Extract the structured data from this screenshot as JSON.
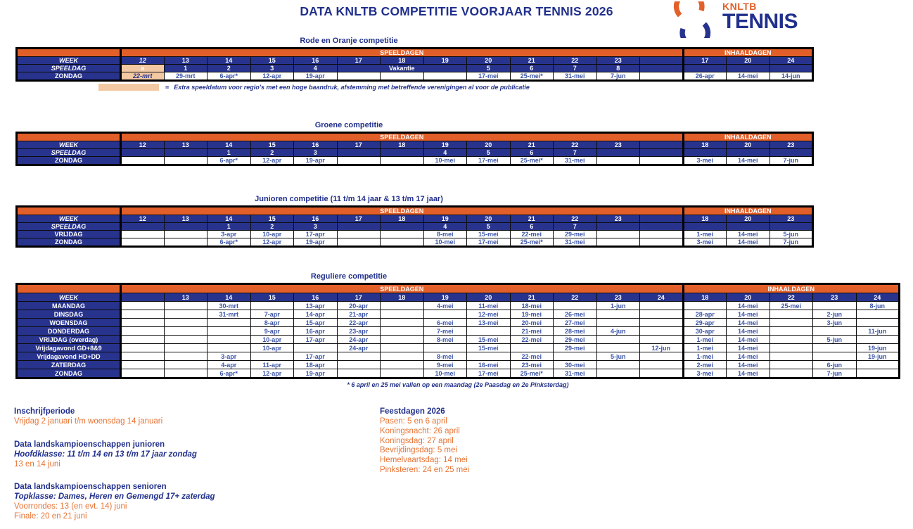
{
  "page": {
    "title": "DATA KNLTB COMPETITIE VOORJAAR TENNIS 2026"
  },
  "logo": {
    "top": "KNLTB",
    "bottom": "TENNIS"
  },
  "colors": {
    "navy": "#27338D",
    "orange_band": "#E25F2A",
    "orange_text": "#E87435",
    "date_blue": "#3C55A8",
    "highlight_peach": "#F2C9A3",
    "title_navy": "#21308C"
  },
  "tables": [
    {
      "slug": "rode-en-oranje",
      "caption": "Rode en Oranje competitie",
      "speeldagen_label": "SPEELDAGEN",
      "inhaaldagen_label": "INHAALDAGEN",
      "rows": [
        {
          "label": "WEEK",
          "kind": "head",
          "play": [
            {
              "t": "12",
              "italic": true
            },
            "13",
            "14",
            "15",
            "16",
            "17",
            "18",
            "19",
            "20",
            "21",
            "22",
            "23",
            ""
          ],
          "inhaal": [
            "17",
            "20",
            "24"
          ]
        },
        {
          "label": "SPEELDAG",
          "kind": "head",
          "play": [
            {
              "t": "a",
              "hl": true
            },
            "1",
            "2",
            "3",
            "4",
            {
              "t": "Vakantie",
              "span": 3
            },
            "5",
            "6",
            "7",
            "8",
            ""
          ],
          "inhaal": [
            "",
            "",
            ""
          ]
        },
        {
          "label": "ZONDAG",
          "kind": "day",
          "play": [
            {
              "t": "22-mrt",
              "hl": true,
              "italic": true
            },
            "29-mrt",
            "6-apr*",
            "12-apr",
            "19-apr",
            "",
            "",
            "",
            "17-mei",
            "25-mei*",
            "31-mei",
            "7-jun",
            ""
          ],
          "inhaal": [
            "26-apr",
            "14-mei",
            "14-jun"
          ]
        }
      ],
      "legend": {
        "symbol": "=",
        "text": "Extra speeldatum voor regio's met een hoge baandruk, afstemming met betreffende verenigingen al voor de publicatie"
      }
    },
    {
      "slug": "groene",
      "caption": "Groene competitie",
      "speeldagen_label": "SPEELDAGEN",
      "inhaaldagen_label": "INHAALDAGEN",
      "rows": [
        {
          "label": "WEEK",
          "kind": "head",
          "play": [
            "12",
            "13",
            "14",
            "15",
            "16",
            "17",
            "18",
            "19",
            "20",
            "21",
            "22",
            "23",
            ""
          ],
          "inhaal": [
            "18",
            "20",
            "23"
          ]
        },
        {
          "label": "SPEELDAG",
          "kind": "head",
          "play": [
            "",
            "",
            "1",
            "2",
            "3",
            "",
            "",
            "4",
            "5",
            "6",
            "7",
            "",
            ""
          ],
          "inhaal": [
            "",
            "",
            ""
          ]
        },
        {
          "label": "ZONDAG",
          "kind": "day",
          "play": [
            "",
            "",
            "6-apr*",
            "12-apr",
            "19-apr",
            "",
            "",
            "10-mei",
            "17-mei",
            "25-mei*",
            "31-mei",
            "",
            ""
          ],
          "inhaal": [
            "3-mei",
            "14-mei",
            "7-jun"
          ]
        }
      ]
    },
    {
      "slug": "junioren",
      "caption": "Junioren competitie (11 t/m 14 jaar & 13 t/m 17 jaar)",
      "speeldagen_label": "SPEELDAGEN",
      "inhaaldagen_label": "INHAALDAGEN",
      "rows": [
        {
          "label": "WEEK",
          "kind": "head",
          "play": [
            "12",
            "13",
            "14",
            "15",
            "16",
            "17",
            "18",
            "19",
            "20",
            "21",
            "22",
            "23",
            ""
          ],
          "inhaal": [
            "18",
            "20",
            "23"
          ]
        },
        {
          "label": "SPEELDAG",
          "kind": "head",
          "play": [
            "",
            "",
            "1",
            "2",
            "3",
            "",
            "",
            "4",
            "5",
            "6",
            "7",
            "",
            ""
          ],
          "inhaal": [
            "",
            "",
            ""
          ]
        },
        {
          "label": "VRIJDAG",
          "kind": "day",
          "play": [
            "",
            "",
            "3-apr",
            "10-apr",
            "17-apr",
            "",
            "",
            "8-mei",
            "15-mei",
            "22-mei",
            "29-mei",
            "",
            ""
          ],
          "inhaal": [
            "1-mei",
            "14-mei",
            "5-jun"
          ]
        },
        {
          "label": "ZONDAG",
          "kind": "day",
          "play": [
            "",
            "",
            "6-apr*",
            "12-apr",
            "19-apr",
            "",
            "",
            "10-mei",
            "17-mei",
            "25-mei*",
            "31-mei",
            "",
            ""
          ],
          "inhaal": [
            "3-mei",
            "14-mei",
            "7-jun"
          ]
        }
      ]
    },
    {
      "slug": "reguliere",
      "caption": "Reguliere competitie",
      "speeldagen_label": "SPEELDAGEN",
      "inhaaldagen_label": "INHAALDAGEN",
      "rows": [
        {
          "label": "WEEK",
          "kind": "head",
          "play": [
            "",
            "13",
            "14",
            "15",
            "16",
            "17",
            "18",
            "19",
            "20",
            "21",
            "22",
            "23",
            "24"
          ],
          "inhaal": [
            "18",
            "20",
            "22",
            "23",
            "24"
          ]
        },
        {
          "label": "MAANDAG",
          "kind": "day",
          "play": [
            "",
            "",
            "30-mrt",
            "",
            "13-apr",
            "20-apr",
            "",
            "4-mei",
            "11-mei",
            "18-mei",
            "",
            "1-jun",
            ""
          ],
          "inhaal": [
            "",
            "14-mei",
            "25-mei",
            "",
            "8-jun"
          ]
        },
        {
          "label": "DINSDAG",
          "kind": "day",
          "play": [
            "",
            "",
            "31-mrt",
            "7-apr",
            "14-apr",
            "21-apr",
            "",
            "",
            "12-mei",
            "19-mei",
            "26-mei",
            "",
            ""
          ],
          "inhaal": [
            "28-apr",
            "14-mei",
            "",
            "2-jun",
            ""
          ]
        },
        {
          "label": "WOENSDAG",
          "kind": "day",
          "play": [
            "",
            "",
            "",
            "8-apr",
            "15-apr",
            "22-apr",
            "",
            "6-mei",
            "13-mei",
            "20-mei",
            "27-mei",
            "",
            ""
          ],
          "inhaal": [
            "29-apr",
            "14-mei",
            "",
            "3-jun",
            ""
          ]
        },
        {
          "label": "DONDERDAG",
          "kind": "day",
          "play": [
            "",
            "",
            "",
            "9-apr",
            "16-apr",
            "23-apr",
            "",
            "7-mei",
            "",
            "21-mei",
            "28-mei",
            "4-jun",
            ""
          ],
          "inhaal": [
            "30-apr",
            "14-mei",
            "",
            "",
            "11-jun"
          ]
        },
        {
          "label": "VRIJDAG (overdag)",
          "kind": "day",
          "play": [
            "",
            "",
            "",
            "10-apr",
            "17-apr",
            "24-apr",
            "",
            "8-mei",
            "15-mei",
            "22-mei",
            "29-mei",
            "",
            ""
          ],
          "inhaal": [
            "1-mei",
            "14-mei",
            "",
            "5-jun",
            ""
          ]
        },
        {
          "label": "Vrijdagavond GD+8&9",
          "kind": "day",
          "play": [
            "",
            "",
            "",
            "10-apr",
            "",
            "24-apr",
            "",
            "",
            "15-mei",
            "",
            "29-mei",
            "",
            "12-jun"
          ],
          "inhaal": [
            "1-mei",
            "14-mei",
            "",
            "",
            "19-jun"
          ]
        },
        {
          "label": "Vrijdagavond HD+DD",
          "kind": "day",
          "play": [
            "",
            "",
            "3-apr",
            "",
            "17-apr",
            "",
            "",
            "8-mei",
            "",
            "22-mei",
            "",
            "5-jun",
            ""
          ],
          "inhaal": [
            "1-mei",
            "14-mei",
            "",
            "",
            "19-jun"
          ]
        },
        {
          "label": "ZATERDAG",
          "kind": "day",
          "play": [
            "",
            "",
            "4-apr",
            "11-apr",
            "18-apr",
            "",
            "",
            "9-mei",
            "16-mei",
            "23-mei",
            "30-mei",
            "",
            ""
          ],
          "inhaal": [
            "2-mei",
            "14-mei",
            "",
            "6-jun",
            ""
          ]
        },
        {
          "label": "ZONDAG",
          "kind": "day",
          "play": [
            "",
            "",
            "6-apr*",
            "12-apr",
            "19-apr",
            "",
            "",
            "10-mei",
            "17-mei",
            "25-mei*",
            "31-mei",
            "",
            ""
          ],
          "inhaal": [
            "3-mei",
            "14-mei",
            "",
            "7-jun",
            ""
          ]
        }
      ],
      "footnote": "* 6 april en 25 mei vallen op een maandag (2e Paasdag en 2e Pinksterdag)"
    }
  ],
  "notes_left": [
    {
      "heading": "Inschrijfperiode",
      "lines": [
        {
          "t": "Vrijdag 2 januari t/m woensdag 14 januari",
          "style": "orange"
        }
      ]
    },
    {
      "heading": "Data landskampioenschappen junioren",
      "lines": [
        {
          "t": "Hoofdklasse: 11 t/m 14 en 13 t/m 17 jaar zondag",
          "style": "italic"
        },
        {
          "t": "13 en 14 juni",
          "style": "orange"
        }
      ]
    },
    {
      "heading": "Data landskampioenschappen senioren",
      "lines": [
        {
          "t": "Topklasse: Dames, Heren en Gemengd 17+ zaterdag",
          "style": "italic"
        },
        {
          "t": "Voorrondes: 13 (en evt. 14) juni",
          "style": "orange"
        },
        {
          "t": "Finale: 20 en 21 juni",
          "style": "orange"
        }
      ]
    }
  ],
  "notes_right": [
    {
      "heading": "Feestdagen 2026",
      "lines": [
        {
          "t": "Pasen: 5 en 6 april",
          "style": "orange"
        },
        {
          "t": "Koningsnacht: 26 april",
          "style": "orange"
        },
        {
          "t": "Koningsdag: 27 april",
          "style": "orange"
        },
        {
          "t": "Bevrijdingsdag: 5 mei",
          "style": "orange"
        },
        {
          "t": "Hemelvaartsdag: 14 mei",
          "style": "orange"
        },
        {
          "t": "Pinksteren: 24 en 25 mei",
          "style": "orange"
        }
      ]
    }
  ]
}
